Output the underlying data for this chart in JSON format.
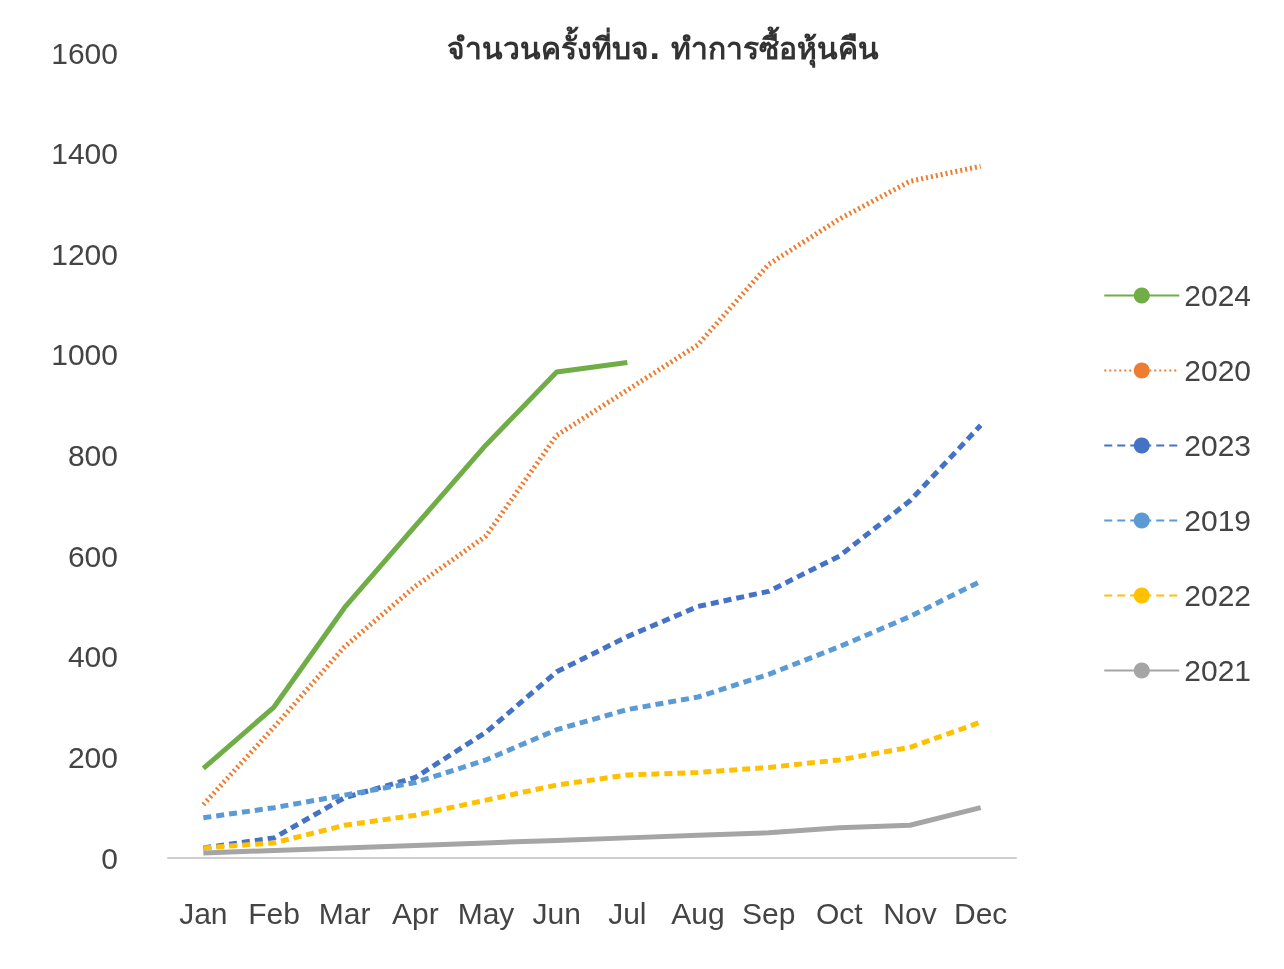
{
  "chart_data": {
    "type": "line",
    "title": "จำนวนครั้งที่บจ. ทำการซื้อหุ้นคืน",
    "categories": [
      "Jan",
      "Feb",
      "Mar",
      "Apr",
      "May",
      "Jun",
      "Jul",
      "Aug",
      "Sep",
      "Oct",
      "Nov",
      "Dec"
    ],
    "series": [
      {
        "name": "2024",
        "color": "#70ad47",
        "line_style": "solid",
        "values": [
          178,
          300,
          498,
          660,
          821,
          966,
          985,
          null,
          null,
          null,
          null,
          null
        ]
      },
      {
        "name": "2020",
        "color": "#ed7d31",
        "line_style": "dotted",
        "values": [
          106,
          260,
          420,
          540,
          640,
          840,
          930,
          1020,
          1180,
          1270,
          1345,
          1375
        ]
      },
      {
        "name": "2023",
        "color": "#4472c4",
        "line_style": "dashed",
        "values": [
          20,
          40,
          120,
          160,
          250,
          370,
          440,
          500,
          530,
          600,
          710,
          860
        ]
      },
      {
        "name": "2019",
        "color": "#5b9bd5",
        "line_style": "dashed",
        "values": [
          80,
          100,
          125,
          150,
          195,
          255,
          295,
          320,
          365,
          420,
          480,
          550
        ]
      },
      {
        "name": "2022",
        "color": "#ffc000",
        "line_style": "dashed",
        "values": [
          20,
          30,
          65,
          85,
          115,
          145,
          165,
          170,
          180,
          195,
          220,
          270
        ]
      },
      {
        "name": "2021",
        "color": "#a5a5a5",
        "line_style": "solid",
        "values": [
          10,
          15,
          20,
          25,
          30,
          35,
          40,
          45,
          50,
          60,
          65,
          100
        ]
      }
    ],
    "ylim": [
      0,
      1600
    ],
    "yticks": [
      0,
      200,
      400,
      600,
      800,
      1000,
      1200,
      1400,
      1600
    ],
    "grid": false,
    "legend": "right",
    "marker": "none"
  }
}
